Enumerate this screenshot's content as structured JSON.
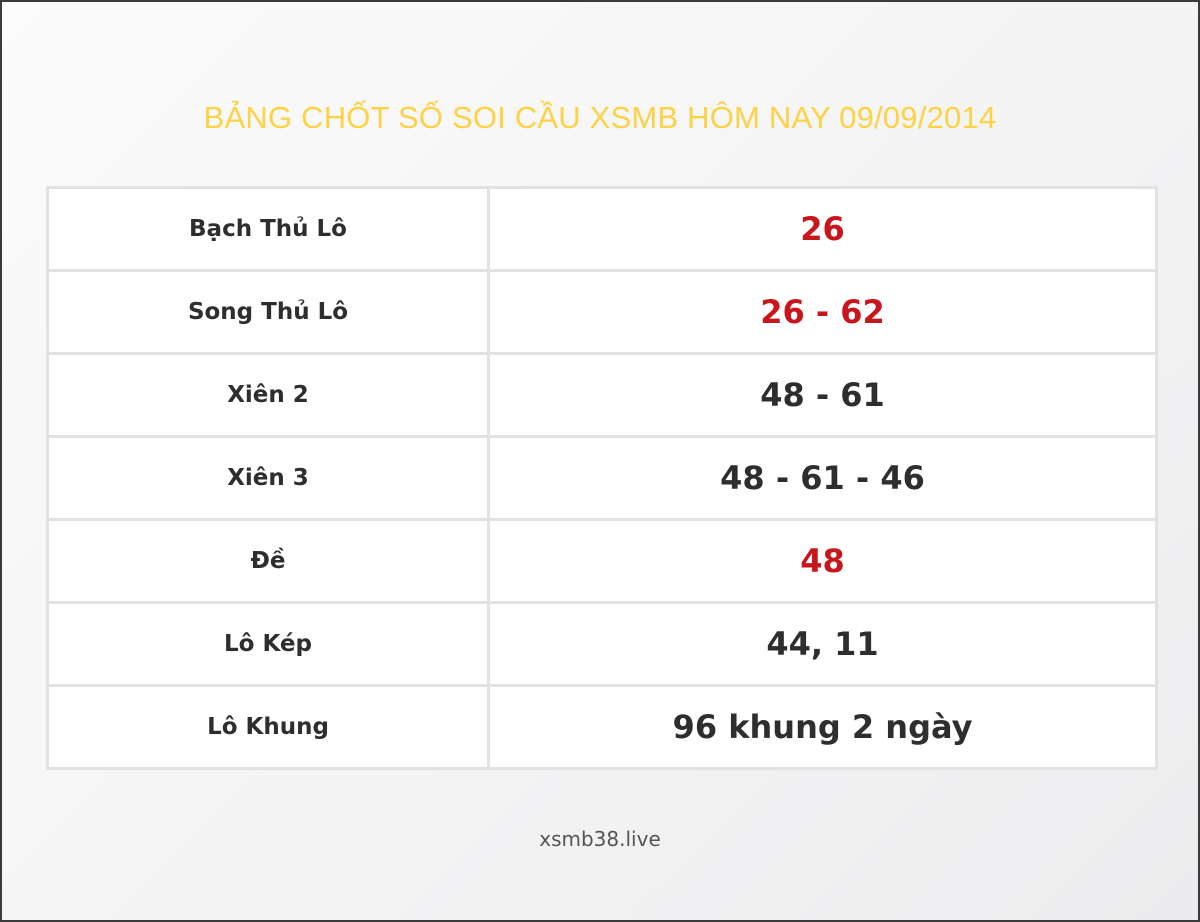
{
  "title": "BẢNG CHỐT SỐ SOI CẦU XSMB HÔM NAY 09/09/2014",
  "rows": [
    {
      "label": "Bạch Thủ Lô",
      "value": "26",
      "highlight": true
    },
    {
      "label": "Song Thủ Lô",
      "value": "26 - 62",
      "highlight": true
    },
    {
      "label": "Xiên 2",
      "value": "48 - 61",
      "highlight": false
    },
    {
      "label": "Xiên 3",
      "value": "48 - 61 - 46",
      "highlight": false
    },
    {
      "label": "Đề",
      "value": "48",
      "highlight": true
    },
    {
      "label": "Lô Kép",
      "value": "44, 11",
      "highlight": false
    },
    {
      "label": "Lô Khung",
      "value": "96 khung 2 ngày",
      "highlight": false
    }
  ],
  "footer": "xsmb38.live",
  "colors": {
    "title": "#fdd245",
    "highlight": "#c8161d",
    "text": "#2e2e2e"
  }
}
